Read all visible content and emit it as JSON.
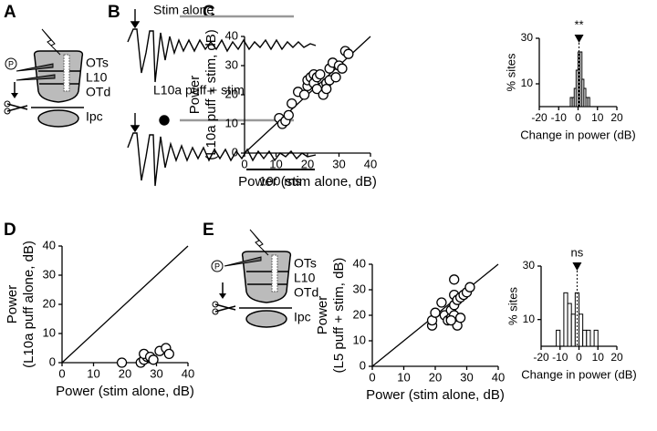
{
  "panel_letters": [
    "A",
    "B",
    "C",
    "D",
    "E"
  ],
  "diagram_A": {
    "labels": [
      "OTs",
      "L10",
      "OTd",
      "Ipc"
    ],
    "pipette": "P"
  },
  "diagram_E": {
    "labels": [
      "OTs",
      "L10",
      "OTd",
      "Ipc"
    ],
    "pipette": "P"
  },
  "traces": {
    "top_label": "Stim alone",
    "bottom_label": "L10a puff + stim",
    "scale_bar": "100 ms"
  },
  "chart_data": [
    {
      "type": "scatter",
      "xlabel": "Power (stim alone, dB)",
      "ylabel": [
        "Power",
        "(L10a puff + stim, dB)"
      ],
      "x": [
        11,
        12,
        13,
        14,
        15,
        17,
        19,
        20,
        20,
        21,
        22,
        22,
        23,
        23,
        24,
        25,
        26,
        27,
        27,
        28,
        29,
        30,
        31,
        32,
        33,
        26
      ],
      "y": [
        12,
        10,
        11,
        13,
        17,
        21,
        20,
        23,
        25,
        26,
        24,
        27,
        22,
        26,
        27,
        20,
        24,
        25,
        29,
        31,
        26,
        30,
        29,
        35,
        34,
        22
      ],
      "xlim": [
        0,
        40
      ],
      "ylim": [
        0,
        40
      ],
      "xticks": [
        0,
        10,
        20,
        30,
        40
      ],
      "yticks": [
        0,
        10,
        20,
        30,
        40
      ],
      "identity_line": true
    },
    {
      "type": "histogram",
      "xlabel": "Change in power (dB)",
      "ylabel": "% sites",
      "annotation": "**",
      "marker_x": 0.5,
      "bins": [
        -4,
        -3,
        -2,
        -1,
        0,
        1,
        2,
        3,
        4,
        5,
        6
      ],
      "values": [
        4,
        4,
        8,
        16,
        24,
        24,
        12,
        8,
        4,
        4
      ],
      "color": "#ffffff",
      "xlim": [
        -20,
        20
      ],
      "ylim": [
        0,
        30
      ],
      "xticks": [
        -20,
        -10,
        0,
        10,
        20
      ],
      "yticks": [
        10,
        30
      ]
    },
    {
      "type": "scatter",
      "xlabel": "Power (stim alone, dB)",
      "ylabel": [
        "Power",
        "(L10a puff alone, dB)"
      ],
      "x": [
        19,
        25,
        26,
        27,
        26,
        28,
        29,
        31,
        33,
        34
      ],
      "y": [
        0,
        0,
        1,
        2,
        3,
        2,
        1,
        4,
        5,
        3
      ],
      "xlim": [
        0,
        40
      ],
      "ylim": [
        0,
        40
      ],
      "xticks": [
        0,
        10,
        20,
        30,
        40
      ],
      "yticks": [
        0,
        10,
        20,
        30,
        40
      ],
      "identity_line": true
    },
    {
      "type": "scatter",
      "xlabel": "Power (stim alone, dB)",
      "ylabel": [
        "Power",
        "(L5 puff + stim, dB)"
      ],
      "x": [
        19,
        19,
        20,
        22,
        23,
        24,
        25,
        25,
        26,
        26,
        26,
        26,
        27,
        27,
        28,
        28,
        29,
        30,
        31,
        25
      ],
      "y": [
        16,
        18,
        21,
        25,
        20,
        18,
        19,
        22,
        20,
        24,
        28,
        34,
        26,
        16,
        19,
        27,
        28,
        29,
        31,
        18
      ],
      "xlim": [
        0,
        40
      ],
      "ylim": [
        0,
        40
      ],
      "xticks": [
        0,
        10,
        20,
        30,
        40
      ],
      "yticks": [
        0,
        10,
        20,
        30,
        40
      ],
      "identity_line": true
    },
    {
      "type": "histogram",
      "xlabel": "Change in power (dB)",
      "ylabel": "% sites",
      "annotation": "ns",
      "marker_x": -1,
      "bins": [
        -12,
        -10,
        -8,
        -6,
        -4,
        -2,
        0,
        2,
        4,
        6,
        8,
        10
      ],
      "values": [
        6,
        0,
        20,
        16,
        12,
        20,
        12,
        6,
        6,
        0,
        6
      ],
      "color": "#ffffff",
      "xlim": [
        -20,
        20
      ],
      "ylim": [
        0,
        30
      ],
      "xticks": [
        -20,
        -10,
        0,
        10,
        20
      ],
      "yticks": [
        10,
        30
      ]
    }
  ]
}
